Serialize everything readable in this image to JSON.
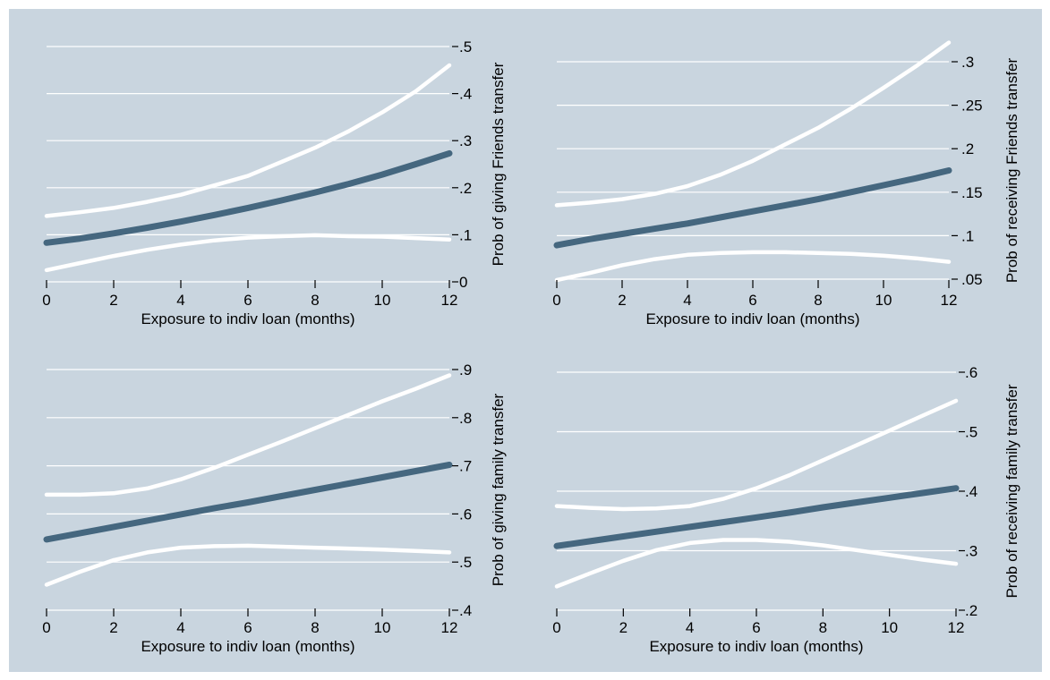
{
  "colors": {
    "figure_background": "#c9d5df",
    "gridline": "#ffffff",
    "confidence_band": "#ffffff",
    "estimate_line": "#45677f",
    "axis": "#000000"
  },
  "chart_data": [
    {
      "type": "line",
      "xlabel": "Exposure to indiv loan (months)",
      "ylabel": "Prob of giving Friends transfer",
      "x_ticks": [
        0,
        2,
        4,
        6,
        8,
        10,
        12
      ],
      "x_tick_labels": [
        "0",
        "2",
        "4",
        "6",
        "8",
        "10",
        "12"
      ],
      "y_ticks": [
        0,
        0.1,
        0.2,
        0.3,
        0.4,
        0.5
      ],
      "y_tick_labels": [
        "0",
        ".1",
        ".2",
        ".3",
        ".4",
        ".5"
      ],
      "xlim": [
        0,
        12
      ],
      "ylim": [
        0,
        0.5
      ],
      "y_axis_side": "right",
      "grid": true,
      "x": [
        0,
        1,
        2,
        3,
        4,
        5,
        6,
        7,
        8,
        9,
        10,
        11,
        12
      ],
      "series": [
        {
          "role": "upper",
          "values": [
            0.14,
            0.148,
            0.157,
            0.17,
            0.185,
            0.205,
            0.225,
            0.255,
            0.285,
            0.32,
            0.36,
            0.405,
            0.46
          ]
        },
        {
          "role": "estimate",
          "values": [
            0.083,
            0.092,
            0.103,
            0.115,
            0.128,
            0.142,
            0.157,
            0.173,
            0.19,
            0.208,
            0.228,
            0.25,
            0.273
          ]
        },
        {
          "role": "lower",
          "values": [
            0.025,
            0.04,
            0.055,
            0.068,
            0.079,
            0.088,
            0.094,
            0.097,
            0.099,
            0.097,
            0.096,
            0.093,
            0.09
          ]
        }
      ]
    },
    {
      "type": "line",
      "xlabel": "Exposure to indiv loan (months)",
      "ylabel": "Prob of receiving Friends transfer",
      "x_ticks": [
        0,
        2,
        4,
        6,
        8,
        10,
        12
      ],
      "x_tick_labels": [
        "0",
        "2",
        "4",
        "6",
        "8",
        "10",
        "12"
      ],
      "y_ticks": [
        0.05,
        0.1,
        0.15,
        0.2,
        0.25,
        0.3
      ],
      "y_tick_labels": [
        ".05",
        ".1",
        ".15",
        ".2",
        ".25",
        ".3"
      ],
      "xlim": [
        0,
        12
      ],
      "ylim": [
        0.05,
        0.3
      ],
      "y_axis_side": "right",
      "grid": true,
      "x": [
        0,
        1,
        2,
        3,
        4,
        5,
        6,
        7,
        8,
        9,
        10,
        11,
        12
      ],
      "series": [
        {
          "role": "upper",
          "values": [
            0.135,
            0.138,
            0.142,
            0.148,
            0.157,
            0.17,
            0.186,
            0.205,
            0.224,
            0.246,
            0.27,
            0.295,
            0.322
          ]
        },
        {
          "role": "estimate",
          "values": [
            0.089,
            0.096,
            0.102,
            0.108,
            0.114,
            0.121,
            0.128,
            0.135,
            0.142,
            0.15,
            0.158,
            0.166,
            0.175
          ]
        },
        {
          "role": "lower",
          "values": [
            0.049,
            0.057,
            0.066,
            0.073,
            0.078,
            0.08,
            0.081,
            0.081,
            0.08,
            0.079,
            0.077,
            0.074,
            0.07
          ]
        }
      ]
    },
    {
      "type": "line",
      "xlabel": "Exposure to indiv loan (months)",
      "ylabel": "Prob of giving family transfer",
      "x_ticks": [
        0,
        2,
        4,
        6,
        8,
        10,
        12
      ],
      "x_tick_labels": [
        "0",
        "2",
        "4",
        "6",
        "8",
        "10",
        "12"
      ],
      "y_ticks": [
        0.4,
        0.5,
        0.6,
        0.7,
        0.8,
        0.9
      ],
      "y_tick_labels": [
        ".4",
        ".5",
        ".6",
        ".7",
        ".8",
        ".9"
      ],
      "xlim": [
        0,
        12
      ],
      "ylim": [
        0.4,
        0.9
      ],
      "y_axis_side": "right",
      "grid": true,
      "x": [
        0,
        1,
        2,
        3,
        4,
        5,
        6,
        7,
        8,
        9,
        10,
        11,
        12
      ],
      "series": [
        {
          "role": "upper",
          "values": [
            0.64,
            0.64,
            0.643,
            0.653,
            0.672,
            0.696,
            0.723,
            0.75,
            0.778,
            0.806,
            0.834,
            0.86,
            0.888
          ]
        },
        {
          "role": "estimate",
          "values": [
            0.547,
            0.56,
            0.573,
            0.586,
            0.599,
            0.612,
            0.624,
            0.637,
            0.65,
            0.663,
            0.676,
            0.689,
            0.702
          ]
        },
        {
          "role": "lower",
          "values": [
            0.453,
            0.48,
            0.504,
            0.52,
            0.53,
            0.533,
            0.534,
            0.532,
            0.53,
            0.528,
            0.526,
            0.523,
            0.52
          ]
        }
      ]
    },
    {
      "type": "line",
      "xlabel": "Exposure to indiv loan (months)",
      "ylabel": "Prob of receiving family transfer",
      "x_ticks": [
        0,
        2,
        4,
        6,
        8,
        10,
        12
      ],
      "x_tick_labels": [
        "0",
        "2",
        "4",
        "6",
        "8",
        "10",
        "12"
      ],
      "y_ticks": [
        0.2,
        0.3,
        0.4,
        0.5,
        0.6
      ],
      "y_tick_labels": [
        ".2",
        ".3",
        ".4",
        ".5",
        ".6"
      ],
      "xlim": [
        0,
        12
      ],
      "ylim": [
        0.2,
        0.6
      ],
      "y_axis_side": "right",
      "grid": true,
      "x": [
        0,
        1,
        2,
        3,
        4,
        5,
        6,
        7,
        8,
        9,
        10,
        11,
        12
      ],
      "series": [
        {
          "role": "upper",
          "values": [
            0.375,
            0.372,
            0.37,
            0.371,
            0.375,
            0.387,
            0.405,
            0.427,
            0.452,
            0.477,
            0.502,
            0.527,
            0.552
          ]
        },
        {
          "role": "estimate",
          "values": [
            0.308,
            0.316,
            0.324,
            0.332,
            0.34,
            0.348,
            0.356,
            0.364,
            0.373,
            0.381,
            0.389,
            0.397,
            0.405
          ]
        },
        {
          "role": "lower",
          "values": [
            0.24,
            0.262,
            0.283,
            0.301,
            0.313,
            0.318,
            0.318,
            0.315,
            0.309,
            0.301,
            0.293,
            0.285,
            0.278
          ]
        }
      ]
    }
  ]
}
